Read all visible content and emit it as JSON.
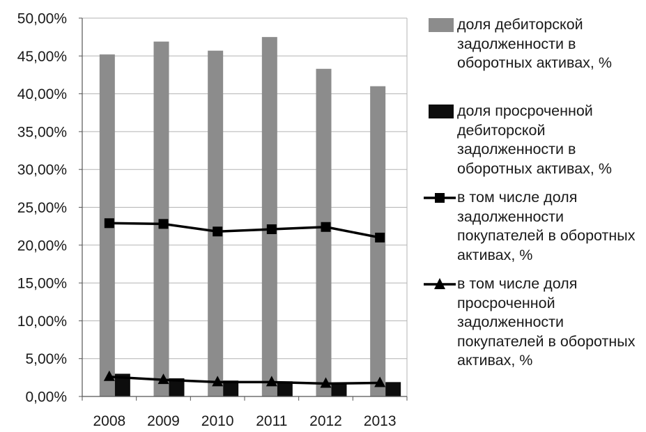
{
  "chart_data": {
    "type": "bar",
    "categories": [
      "2008",
      "2009",
      "2010",
      "2011",
      "2012",
      "2013"
    ],
    "ylim": [
      0,
      50
    ],
    "yticks": [
      "0,00%",
      "5,00%",
      "10,00%",
      "15,00%",
      "20,00%",
      "25,00%",
      "30,00%",
      "35,00%",
      "40,00%",
      "45,00%",
      "50,00%"
    ],
    "grid": true,
    "legend_position": "right",
    "series": [
      {
        "name": "доля дебиторской задолженности в оборотных активах, %",
        "kind": "bar",
        "color": "#8c8c8c",
        "values": [
          45.2,
          46.9,
          45.7,
          47.5,
          43.3,
          41.0
        ]
      },
      {
        "name": "доля просроченной дебиторской задолженности в оборотных активах, %",
        "kind": "bar",
        "color": "#0d0d0d",
        "values": [
          3.0,
          2.4,
          2.1,
          2.0,
          1.8,
          1.9
        ]
      },
      {
        "name": "в том числе доля задолженности покупателей в оборотных активах, %",
        "kind": "line",
        "marker": "square",
        "color": "#000000",
        "values": [
          22.9,
          22.8,
          21.8,
          22.1,
          22.4,
          21.0
        ]
      },
      {
        "name": "в том числе доля просроченной задолженности покупателей в оборотных активах, %",
        "kind": "line",
        "marker": "triangle",
        "color": "#000000",
        "values": [
          2.6,
          2.2,
          1.9,
          1.9,
          1.7,
          1.8
        ]
      }
    ]
  }
}
